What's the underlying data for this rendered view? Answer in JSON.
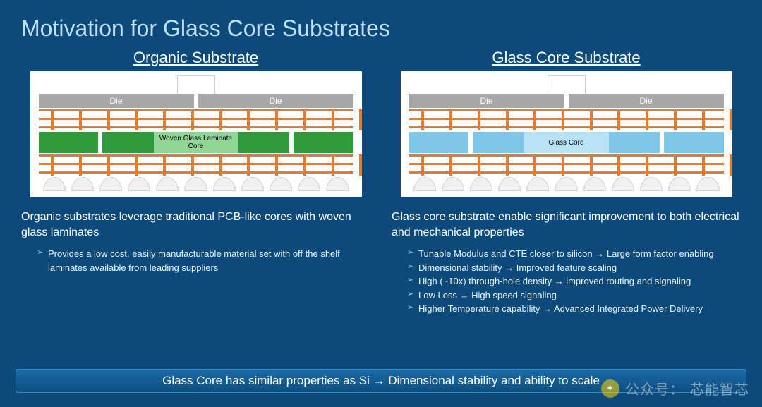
{
  "title": "Motivation for Glass Core Substrates",
  "colors": {
    "background": "#0b4a7a",
    "copper": "#e07b2f",
    "die": "#a7a7a7",
    "organic_core": "#2e9b3a",
    "organic_core_label_bg": "#8fd694",
    "glass_core": "#7fc7e8",
    "glass_core_label_bg": "#b8e2f5",
    "solder_ball": "#f0f0f0",
    "white": "#ffffff"
  },
  "left": {
    "heading": "Organic Substrate",
    "diagram": {
      "die_label": "Die",
      "core_label": "Woven Glass Laminate Core",
      "core_color": "#2e9b3a",
      "core_label_bg": "#8fd694",
      "via_count": 12,
      "ball_count": 11
    },
    "description": "Organic substrates leverage traditional PCB-like cores with woven glass laminates",
    "bullets": [
      "Provides a low cost, easily manufacturable material set with off the shelf laminates available from leading suppliers"
    ]
  },
  "right": {
    "heading": "Glass Core Substrate",
    "diagram": {
      "die_label": "Die",
      "core_label": "Glass Core",
      "core_color": "#7fc7e8",
      "core_label_bg": "#b8e2f5",
      "via_count": 12,
      "ball_count": 11
    },
    "description": "Glass core substrate enable significant improvement to both electrical and mechanical properties",
    "bullets": [
      "Tunable Modulus and CTE closer to silicon → Large form factor enabling",
      "Dimensional stability → Improved feature scaling",
      "High (~10x) through-hole density → improved routing and signaling",
      "Low Loss → High speed signaling",
      "Higher Temperature capability → Advanced Integrated Power Delivery"
    ]
  },
  "footer": "Glass Core has similar properties as Si → Dimensional stability and ability to scale",
  "watermark": {
    "prefix": "公众号：",
    "name": "芯能智芯"
  }
}
